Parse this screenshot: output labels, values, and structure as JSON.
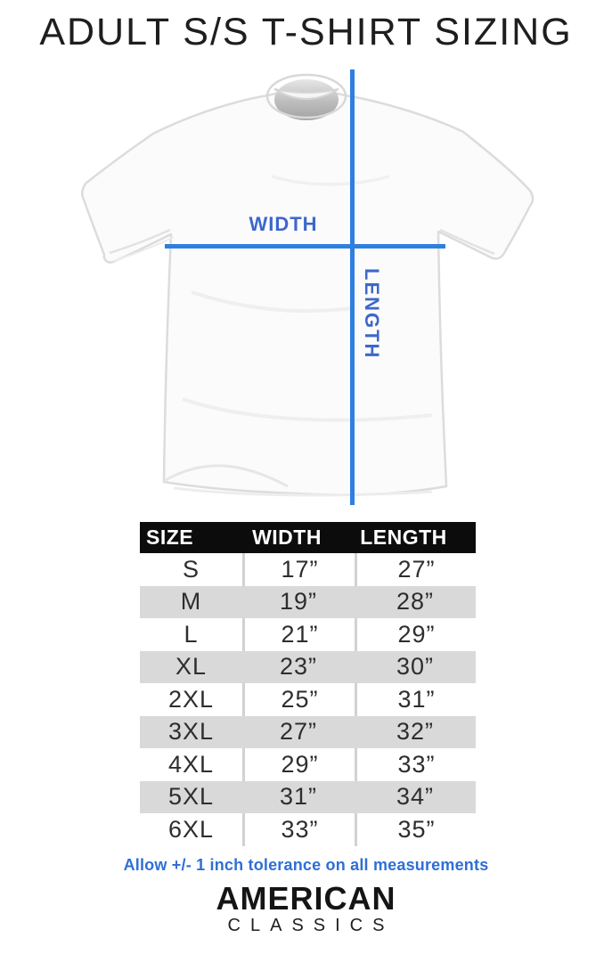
{
  "title": "ADULT S/S T-SHIRT SIZING",
  "diagram": {
    "width_label": "WIDTH",
    "length_label": "LENGTH"
  },
  "table": {
    "headers": [
      "SIZE",
      "WIDTH",
      "LENGTH"
    ],
    "rows": [
      [
        "S",
        "17”",
        "27”"
      ],
      [
        "M",
        "19”",
        "28”"
      ],
      [
        "L",
        "21”",
        "29”"
      ],
      [
        "XL",
        "23”",
        "30”"
      ],
      [
        "2XL",
        "25”",
        "31”"
      ],
      [
        "3XL",
        "27”",
        "32”"
      ],
      [
        "4XL",
        "29”",
        "33”"
      ],
      [
        "5XL",
        "31”",
        "34”"
      ],
      [
        "6XL",
        "33”",
        "35”"
      ]
    ]
  },
  "footer": {
    "tolerance_note": "Allow +/- 1 inch tolerance on all measurements"
  },
  "brand": {
    "line1": "AMERICAN",
    "line2": "CLASSICS"
  },
  "colors": {
    "line_blue": "#2e7fe0",
    "label_blue": "#3c67cc",
    "note_blue": "#2e6fd6",
    "header_bg": "#0c0c0c",
    "alt_row": "#d9d9d9",
    "row_text": "#2e2e2e"
  }
}
